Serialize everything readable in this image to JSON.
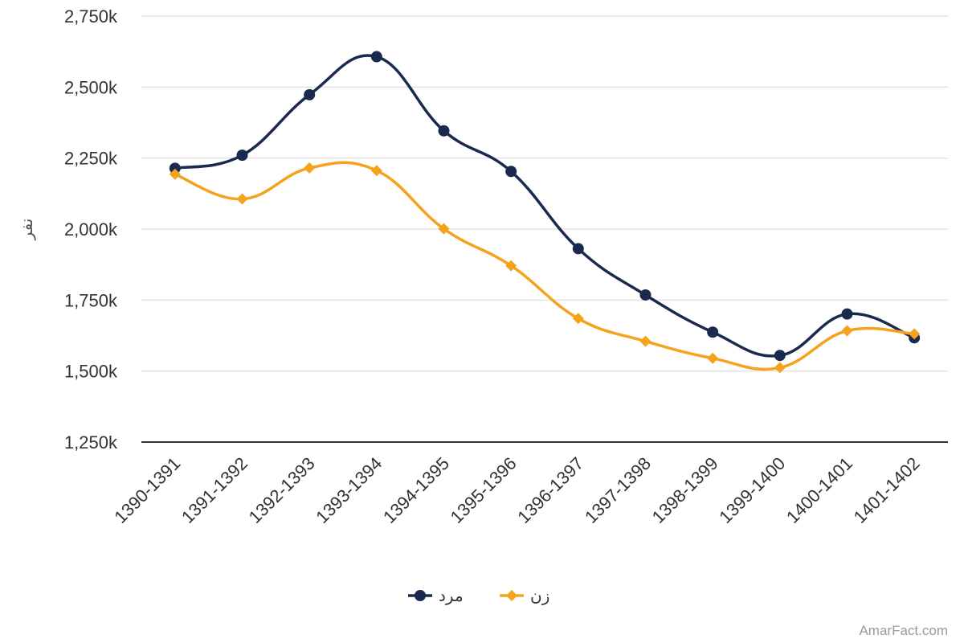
{
  "chart_data": {
    "type": "line",
    "categories": [
      "1390-1391",
      "1391-1392",
      "1392-1393",
      "1393-1394",
      "1394-1395",
      "1395-1396",
      "1396-1397",
      "1397-1398",
      "1398-1399",
      "1399-1400",
      "1400-1401",
      "1401-1402"
    ],
    "ylabel": "نفر",
    "ylim": [
      1250000,
      2750000
    ],
    "yticks": [
      1250000,
      1500000,
      1750000,
      2000000,
      2250000,
      2500000,
      2750000
    ],
    "ytick_labels": [
      "1,250k",
      "1,500k",
      "1,750k",
      "2,000k",
      "2,250k",
      "2,500k",
      "2,750k"
    ],
    "grid": true,
    "legend_position": "bottom-center",
    "series": [
      {
        "name": "مرد",
        "color": "#1a2a4f",
        "marker": "circle",
        "values": [
          2214000,
          2260000,
          2473000,
          2607000,
          2346000,
          2203000,
          1931000,
          1768000,
          1637000,
          1555000,
          1701000,
          1617000
        ]
      },
      {
        "name": "زن",
        "color": "#f5a21c",
        "marker": "diamond",
        "values": [
          2193000,
          2106000,
          2215000,
          2206000,
          2001000,
          1871000,
          1685000,
          1605000,
          1545000,
          1512000,
          1642000,
          1631000
        ]
      }
    ]
  },
  "credit": "AmarFact.com"
}
